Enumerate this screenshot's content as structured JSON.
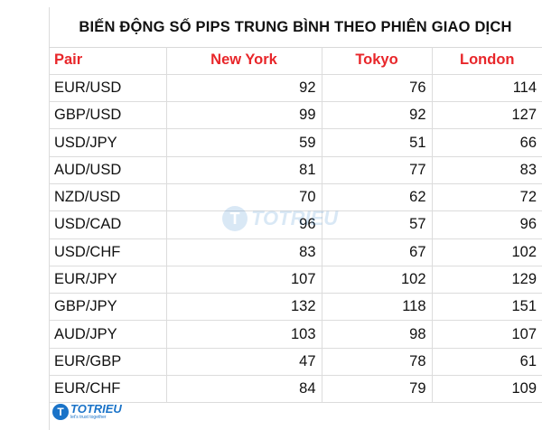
{
  "title": "BIẾN ĐỘNG SỐ PIPS TRUNG BÌNH THEO PHIÊN GIAO DỊCH",
  "colors": {
    "header": "#e8262a",
    "brand": "#1a73c8"
  },
  "columns": [
    "Pair",
    "New York",
    "Tokyo",
    "London"
  ],
  "rows": [
    {
      "pair": "EUR/USD",
      "new_york": "92",
      "tokyo": "76",
      "london": "114"
    },
    {
      "pair": "GBP/USD",
      "new_york": "99",
      "tokyo": "92",
      "london": "127"
    },
    {
      "pair": "USD/JPY",
      "new_york": "59",
      "tokyo": "51",
      "london": "66"
    },
    {
      "pair": "AUD/USD",
      "new_york": "81",
      "tokyo": "77",
      "london": "83"
    },
    {
      "pair": "NZD/USD",
      "new_york": "70",
      "tokyo": "62",
      "london": "72"
    },
    {
      "pair": "USD/CAD",
      "new_york": "96",
      "tokyo": "57",
      "london": "96"
    },
    {
      "pair": "USD/CHF",
      "new_york": "83",
      "tokyo": "67",
      "london": "102"
    },
    {
      "pair": "EUR/JPY",
      "new_york": "107",
      "tokyo": "102",
      "london": "129"
    },
    {
      "pair": "GBP/JPY",
      "new_york": "132",
      "tokyo": "118",
      "london": "151"
    },
    {
      "pair": "AUD/JPY",
      "new_york": "103",
      "tokyo": "98",
      "london": "107"
    },
    {
      "pair": "EUR/GBP",
      "new_york": "47",
      "tokyo": "78",
      "london": "61"
    },
    {
      "pair": "EUR/CHF",
      "new_york": "84",
      "tokyo": "79",
      "london": "109"
    }
  ],
  "watermark": {
    "letter": "T",
    "text": "TOTRIEU"
  },
  "logo": {
    "letter": "T",
    "text": "TOTRIEU",
    "tagline": "let's trust together"
  }
}
